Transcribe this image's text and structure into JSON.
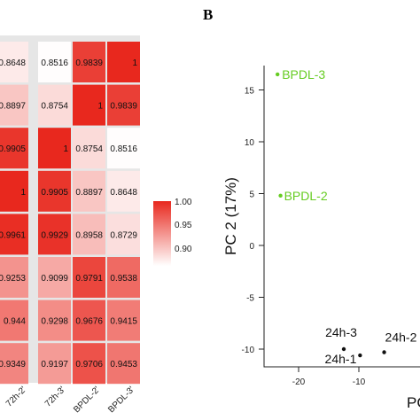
{
  "panel_labels": {
    "b": "B"
  },
  "chart_data": [
    {
      "type": "heatmap",
      "title": "",
      "visible_columns": [
        "72h-2'",
        "72h-3'",
        "BPDL-2'",
        "BPDL-3'"
      ],
      "rows": [
        [
          0.8648,
          0.8516,
          0.9839,
          1
        ],
        [
          0.8897,
          0.8754,
          1,
          0.9839
        ],
        [
          0.9905,
          1,
          0.8754,
          0.8516
        ],
        [
          1,
          0.9905,
          0.8897,
          0.8648
        ],
        [
          0.9961,
          0.9929,
          0.8958,
          0.8729
        ],
        [
          0.9253,
          0.9099,
          0.9791,
          0.9538
        ],
        [
          0.944,
          0.9298,
          0.9676,
          0.9415
        ],
        [
          0.9349,
          0.9197,
          0.9706,
          0.9453
        ]
      ],
      "value_labels": [
        [
          "0.8648",
          "0.8516",
          "0.9839",
          "1"
        ],
        [
          "0.8897",
          "0.8754",
          "1",
          "0.9839"
        ],
        [
          "0.9905",
          "1",
          "0.8754",
          "0.8516"
        ],
        [
          "1",
          "0.9905",
          "0.8897",
          "0.8648"
        ],
        [
          "0.9961",
          "0.9929",
          "0.8958",
          "0.8729"
        ],
        [
          "0.9253",
          "0.9099",
          "0.9791",
          "0.9538"
        ],
        [
          "0.944",
          "0.9298",
          "0.9676",
          "0.9415"
        ],
        [
          "0.9349",
          "0.9197",
          "0.9706",
          "0.9453"
        ]
      ],
      "color_scale": {
        "min": 0.85,
        "max": 1.0,
        "low_color": "#ffffff",
        "high_color": "#e8281e",
        "ticks": [
          "1.00",
          "0.95",
          "0.90"
        ]
      }
    },
    {
      "type": "scatter",
      "panel": "B",
      "xlabel": "PC",
      "ylabel": "PC 2 (17%)",
      "xlim": [
        -25,
        -3
      ],
      "ylim": [
        -12,
        18
      ],
      "xticks": [
        -20,
        -10
      ],
      "yticks": [
        15,
        10,
        5,
        0,
        -5,
        -10
      ],
      "points": [
        {
          "label": "BPDL-3",
          "x": -23.5,
          "y": 16.5,
          "color": "#66cc22"
        },
        {
          "label": "BPDL-2",
          "x": -23.0,
          "y": 4.8,
          "color": "#66cc22"
        },
        {
          "label": "24h-3",
          "x": -12.5,
          "y": -10.0,
          "color": "#111111"
        },
        {
          "label": "24h-1",
          "x": -9.8,
          "y": -10.6,
          "color": "#111111"
        },
        {
          "label": "24h-2",
          "x": -5.8,
          "y": -10.3,
          "color": "#111111"
        }
      ]
    }
  ]
}
